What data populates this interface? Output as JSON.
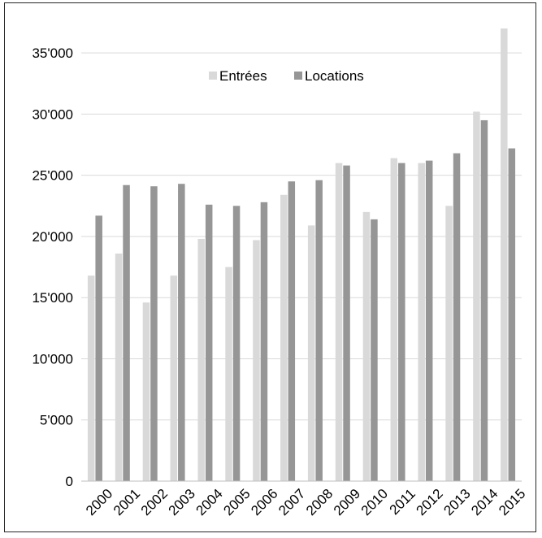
{
  "chart_data": {
    "type": "bar",
    "categories": [
      "2000",
      "2001",
      "2002",
      "2003",
      "2004",
      "2005",
      "2006",
      "2007",
      "2008",
      "2009",
      "2010",
      "2011",
      "2012",
      "2013",
      "2014",
      "2015"
    ],
    "series": [
      {
        "name": "Entrées",
        "color": "#d9d9d9",
        "values": [
          16800,
          18600,
          14600,
          16800,
          19800,
          17500,
          19700,
          23400,
          20900,
          26000,
          22000,
          26400,
          26000,
          22500,
          30200,
          37000
        ]
      },
      {
        "name": "Locations",
        "color": "#969696",
        "values": [
          21700,
          24200,
          24100,
          24300,
          22600,
          22500,
          22800,
          24500,
          24600,
          25800,
          21400,
          26000,
          26200,
          26800,
          29500,
          27200
        ]
      }
    ],
    "y_ticks": [
      {
        "value": 0,
        "label": "0"
      },
      {
        "value": 5000,
        "label": "5'000"
      },
      {
        "value": 10000,
        "label": "10'000"
      },
      {
        "value": 15000,
        "label": "15'000"
      },
      {
        "value": 20000,
        "label": "20'000"
      },
      {
        "value": 25000,
        "label": "25'000"
      },
      {
        "value": 30000,
        "label": "30'000"
      },
      {
        "value": 35000,
        "label": "35'000"
      }
    ],
    "ylim": [
      0,
      38000
    ],
    "grid": true,
    "legend_position": "top-center"
  }
}
